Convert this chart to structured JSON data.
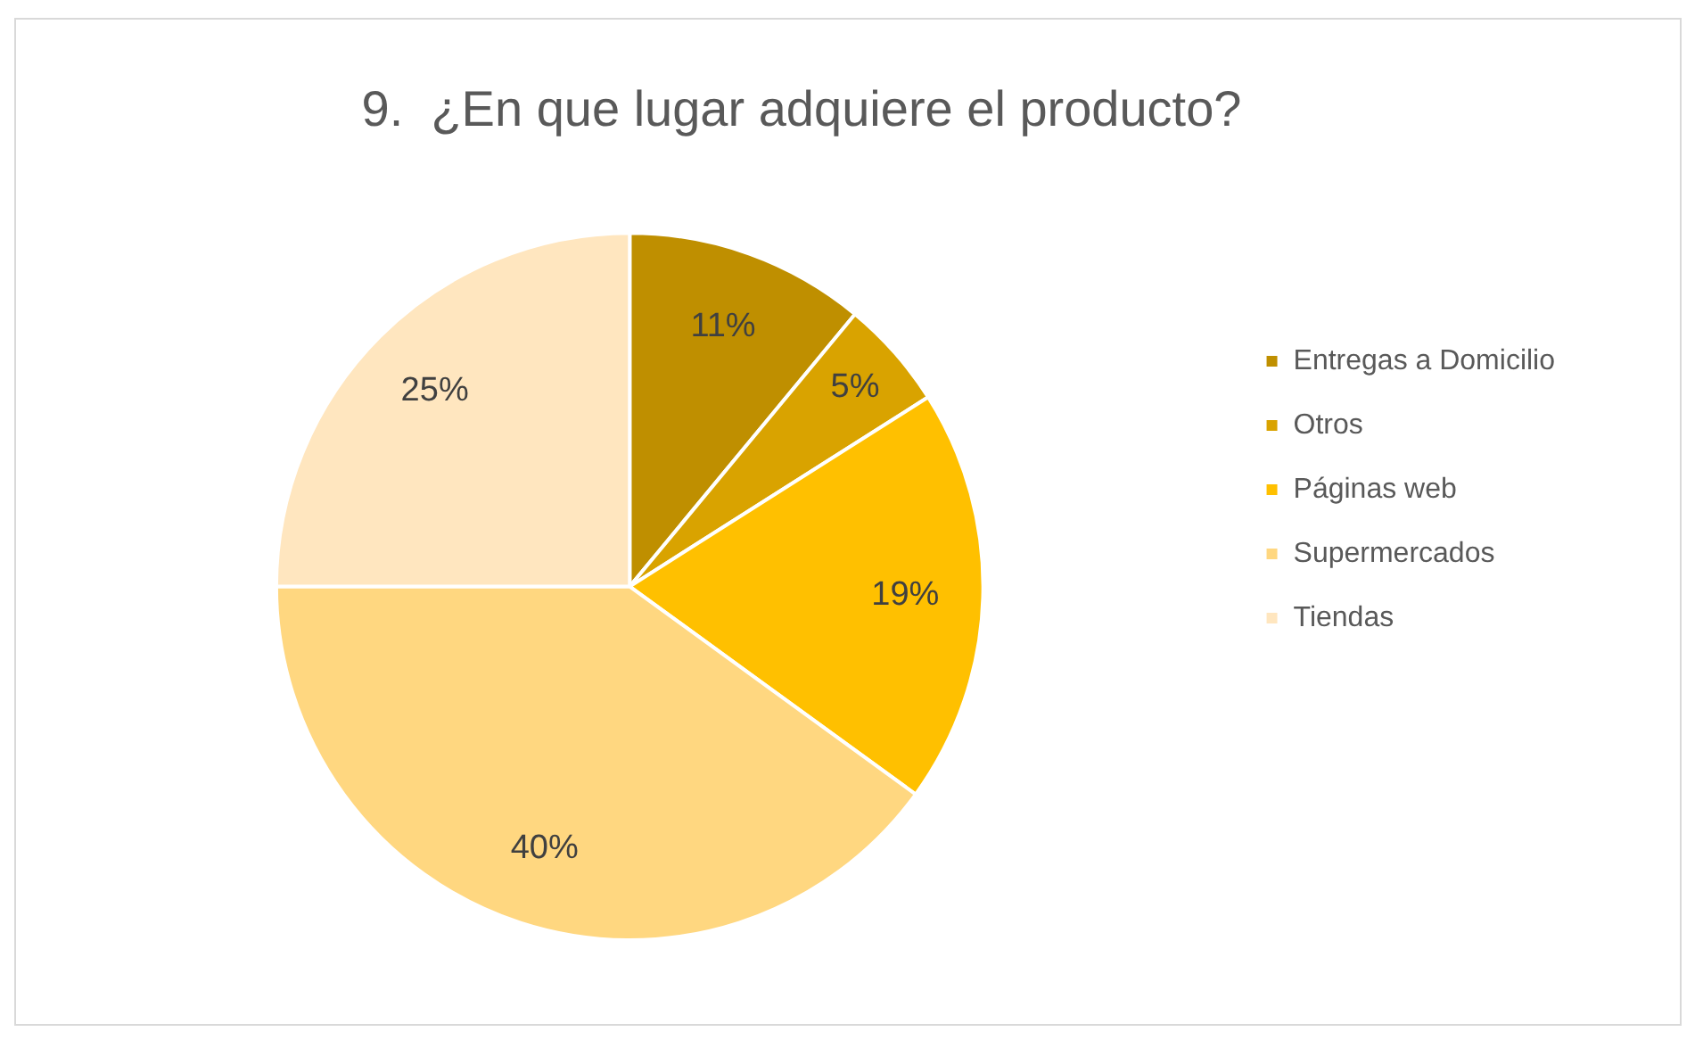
{
  "chart_data": {
    "type": "pie",
    "title": "9.  ¿En que lugar adquiere el producto?",
    "categories": [
      "Entregas a Domicilio",
      "Otros",
      "Páginas web",
      "Supermercados",
      "Tiendas"
    ],
    "values": [
      11,
      5,
      19,
      40,
      25
    ],
    "colors": [
      "#bf8f00",
      "#d9a300",
      "#ffc000",
      "#ffd780",
      "#ffe6bf"
    ],
    "value_labels": [
      "11%",
      "5%",
      "19%",
      "40%",
      "25%"
    ],
    "legend": "right"
  }
}
